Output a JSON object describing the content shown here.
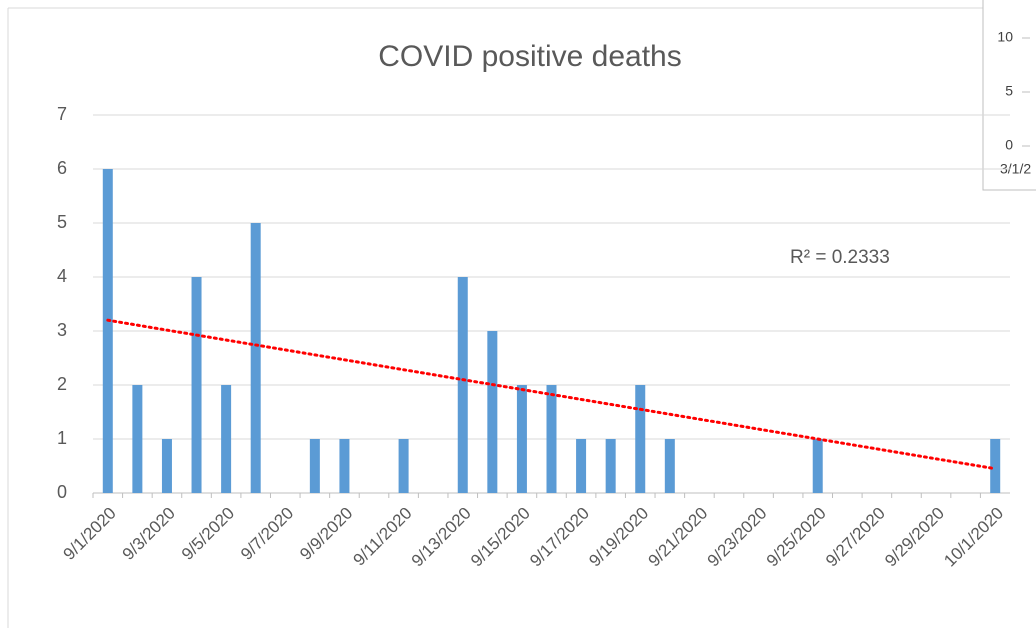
{
  "chart_data": {
    "type": "bar",
    "title": "COVID positive deaths",
    "categories": [
      "9/1/2020",
      null,
      "9/3/2020",
      null,
      "9/5/2020",
      null,
      "9/7/2020",
      null,
      "9/9/2020",
      null,
      "9/11/2020",
      null,
      "9/13/2020",
      null,
      "9/15/2020",
      null,
      "9/17/2020",
      null,
      "9/19/2020",
      null,
      "9/21/2020",
      null,
      "9/23/2020",
      null,
      "9/25/2020",
      null,
      "9/27/2020",
      null,
      "9/29/2020",
      null,
      "10/1/2020"
    ],
    "values": [
      6,
      2,
      1,
      4,
      2,
      5,
      0,
      1,
      1,
      0,
      1,
      0,
      4,
      3,
      2,
      2,
      1,
      1,
      2,
      1,
      0,
      0,
      0,
      0,
      1,
      0,
      0,
      0,
      0,
      0,
      1
    ],
    "color": "#5b9bd5",
    "ylim": [
      0,
      7
    ],
    "yticks": [
      0,
      1,
      2,
      3,
      4,
      5,
      6,
      7
    ],
    "grid": true,
    "trendline": {
      "values": [
        3.2,
        0.45
      ],
      "color": "#ff0000",
      "annotation": "R² = 0.2333"
    },
    "inset": {
      "ylim": [
        0,
        10
      ],
      "yticks": [
        0,
        5,
        10
      ],
      "xlabel": "3/1/2"
    }
  }
}
